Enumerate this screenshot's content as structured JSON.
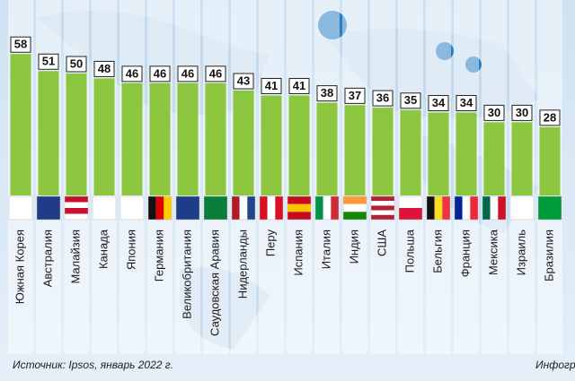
{
  "chart_data": {
    "type": "bar",
    "categories": [
      "Южная Корея",
      "Австралия",
      "Малайзия",
      "Канада",
      "Япония",
      "Германия",
      "Великобритания",
      "Саудовская Аравия",
      "Нидерланды",
      "Перу",
      "Испания",
      "Италия",
      "Индия",
      "США",
      "Польша",
      "Бельгия",
      "Франция",
      "Мексика",
      "Израиль",
      "Бразилия"
    ],
    "values": [
      58,
      51,
      50,
      48,
      46,
      46,
      46,
      46,
      43,
      41,
      41,
      38,
      37,
      36,
      35,
      34,
      34,
      30,
      30,
      28
    ],
    "color": "#8cc63f",
    "source": "Источник: Ipsos, январь 2022 г.",
    "credit": "Инфогр"
  }
}
